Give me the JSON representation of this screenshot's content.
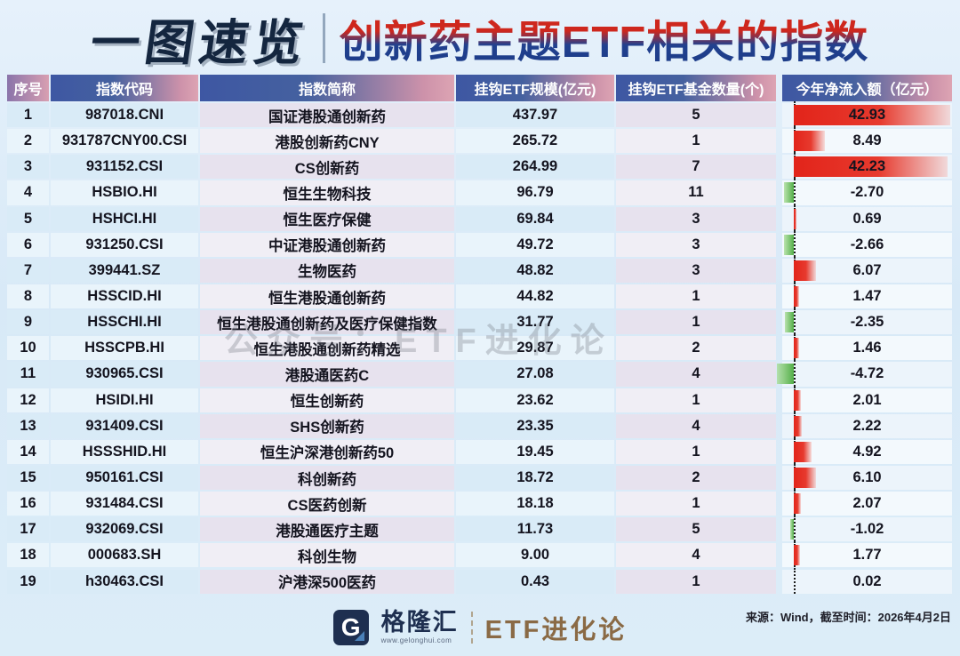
{
  "title": {
    "badge": "一图速览",
    "main": "创新药主题ETF相关的指数"
  },
  "watermark": "公众号：ETF进化论",
  "chart_data": {
    "type": "table",
    "title": "创新药主题ETF相关的指数",
    "columns": [
      "序号",
      "指数代码",
      "指数简称",
      "挂钩ETF规模(亿元)",
      "挂钩ETF基金数量(个)",
      "今年净流入额（亿元）"
    ],
    "inflow_bar_style": {
      "positive_color": "#e2241a",
      "negative_color": "#53af49",
      "zero_axis": "dotted-black"
    },
    "rows": [
      [
        "1",
        "987018.CNI",
        "国证港股通创新药",
        "437.97",
        "5",
        "42.93"
      ],
      [
        "2",
        "931787CNY00.CSI",
        "港股创新药CNY",
        "265.72",
        "1",
        "8.49"
      ],
      [
        "3",
        "931152.CSI",
        "CS创新药",
        "264.99",
        "7",
        "42.23"
      ],
      [
        "4",
        "HSBIO.HI",
        "恒生生物科技",
        "96.79",
        "11",
        "-2.70"
      ],
      [
        "5",
        "HSHCI.HI",
        "恒生医疗保健",
        "69.84",
        "3",
        "0.69"
      ],
      [
        "6",
        "931250.CSI",
        "中证港股通创新药",
        "49.72",
        "3",
        "-2.66"
      ],
      [
        "7",
        "399441.SZ",
        "生物医药",
        "48.82",
        "3",
        "6.07"
      ],
      [
        "8",
        "HSSCID.HI",
        "恒生港股通创新药",
        "44.82",
        "1",
        "1.47"
      ],
      [
        "9",
        "HSSCHI.HI",
        "恒生港股通创新药及医疗保健指数",
        "31.77",
        "1",
        "-2.35"
      ],
      [
        "10",
        "HSSCPB.HI",
        "恒生港股通创新药精选",
        "29.87",
        "2",
        "1.46"
      ],
      [
        "11",
        "930965.CSI",
        "港股通医药C",
        "27.08",
        "4",
        "-4.72"
      ],
      [
        "12",
        "HSIDI.HI",
        "恒生创新药",
        "23.62",
        "1",
        "2.01"
      ],
      [
        "13",
        "931409.CSI",
        "SHS创新药",
        "23.35",
        "4",
        "2.22"
      ],
      [
        "14",
        "HSSSHID.HI",
        "恒生沪深港创新药50",
        "19.45",
        "1",
        "4.92"
      ],
      [
        "15",
        "950161.CSI",
        "科创新药",
        "18.72",
        "2",
        "6.10"
      ],
      [
        "16",
        "931484.CSI",
        "CS医药创新",
        "18.18",
        "1",
        "2.07"
      ],
      [
        "17",
        "932069.CSI",
        "港股通医疗主题",
        "11.73",
        "5",
        "-1.02"
      ],
      [
        "18",
        "000683.SH",
        "科创生物",
        "9.00",
        "4",
        "1.77"
      ],
      [
        "19",
        "h30463.CSI",
        "沪港深500医药",
        "0.43",
        "1",
        "0.02"
      ]
    ]
  },
  "footer": {
    "logo_letter": "G",
    "logo_name": "格隆汇",
    "logo_url": "www.gelonghui.com",
    "brand": "ETF进化论",
    "source": "来源：Wind，截至时间：2026年4月2日"
  }
}
